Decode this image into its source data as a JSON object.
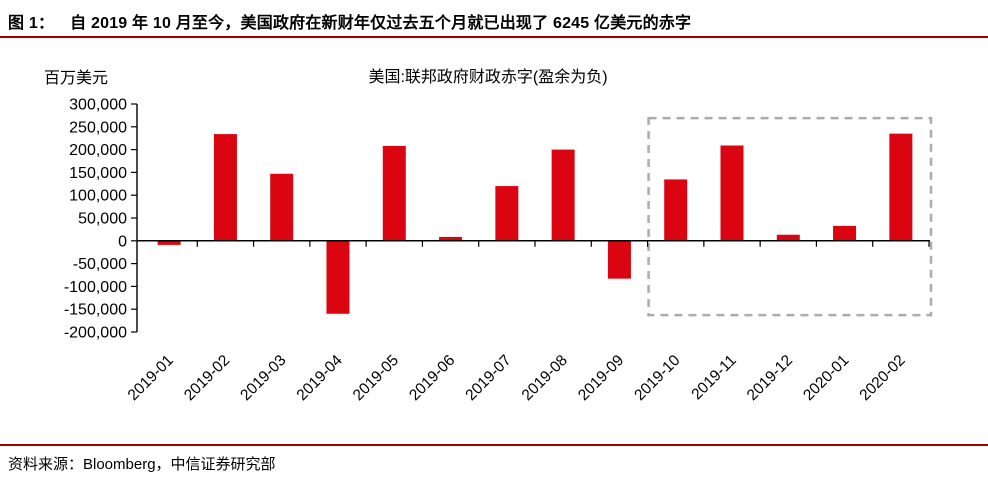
{
  "header": {
    "figure_label": "图 1：",
    "title": "自 2019 年 10 月至今，美国政府在新财年仅过去五个月就已出现了 6245 亿美元的赤字"
  },
  "footer": {
    "source": "资料来源：Bloomberg，中信证券研究部"
  },
  "colors": {
    "bar": "#DA0510",
    "rule": "#A00000",
    "axis": "#000000",
    "highlight_border": "#ACACAC"
  },
  "chart_data": {
    "type": "bar",
    "title": "美国:联邦政府财政赤字(盈余为负)",
    "unit_label": "百万美元",
    "xlabel": "",
    "ylabel": "百万美元",
    "categories": [
      "2019-01",
      "2019-02",
      "2019-03",
      "2019-04",
      "2019-05",
      "2019-06",
      "2019-07",
      "2019-08",
      "2019-09",
      "2019-10",
      "2019-11",
      "2019-12",
      "2020-01",
      "2020-02"
    ],
    "values": [
      -9000,
      234000,
      147000,
      -160000,
      208000,
      8500,
      120000,
      200000,
      -83000,
      134600,
      209000,
      13300,
      32600,
      235000
    ],
    "ylim": [
      -200000,
      300000
    ],
    "ytick_step": 50000,
    "grid": false,
    "legend": "none",
    "bar_color": "#DA0510",
    "highlight_box": {
      "from_category": "2019-10",
      "to_category": "2020-02",
      "top_value": 269000,
      "bottom_value": -163000,
      "border_color": "#ACACAC",
      "style": "dashed"
    }
  }
}
